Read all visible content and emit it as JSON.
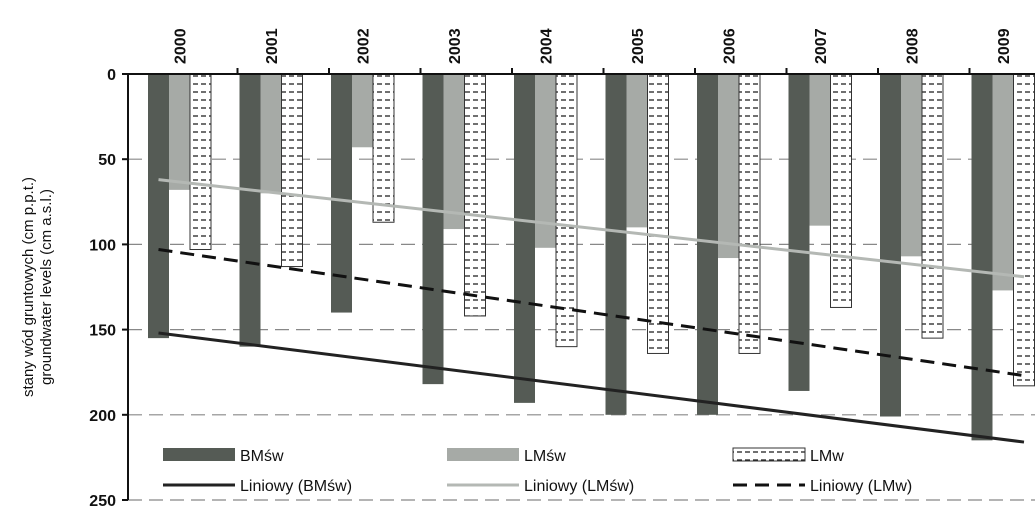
{
  "chart_data": {
    "type": "bar",
    "title": "",
    "ylabel_lines": [
      "stany wód gruntowych (cm p.p.t.)",
      "groundwater levels (cm a.s.l.)"
    ],
    "xlabel": "",
    "y_inverted": true,
    "ylim": [
      0,
      250
    ],
    "yticks": [
      0,
      50,
      100,
      150,
      200,
      250
    ],
    "x_axis_position": "top",
    "grid": "horizontal dashed",
    "legend_position": "bottom",
    "categories": [
      "2000",
      "2001",
      "2002",
      "2003",
      "2004",
      "2005",
      "2006",
      "2007",
      "2008",
      "2009"
    ],
    "series": [
      {
        "name": "BMśw",
        "color": "#555b55",
        "pattern": "solid",
        "values": [
          155,
          160,
          140,
          182,
          193,
          200,
          200,
          186,
          201,
          215
        ]
      },
      {
        "name": "LMśw",
        "color": "#a6aaa6",
        "pattern": "solid",
        "values": [
          68,
          70,
          43,
          91,
          102,
          90,
          108,
          89,
          107,
          127
        ]
      },
      {
        "name": "LMw",
        "color": "#ffffff",
        "pattern": "dashes",
        "values": [
          103,
          113,
          87,
          142,
          160,
          164,
          164,
          137,
          155,
          183
        ]
      }
    ],
    "trendlines": [
      {
        "name": "Liniowy (BMśw)",
        "of": "BMśw",
        "color": "#222222",
        "style": "solid",
        "start": 152,
        "end": 216
      },
      {
        "name": "Liniowy (LMśw)",
        "of": "LMśw",
        "color": "#b4b8b4",
        "style": "solid",
        "start": 62,
        "end": 119
      },
      {
        "name": "Liniowy (LMw)",
        "of": "LMw",
        "color": "#111111",
        "style": "dashed",
        "start": 103,
        "end": 177
      }
    ]
  }
}
